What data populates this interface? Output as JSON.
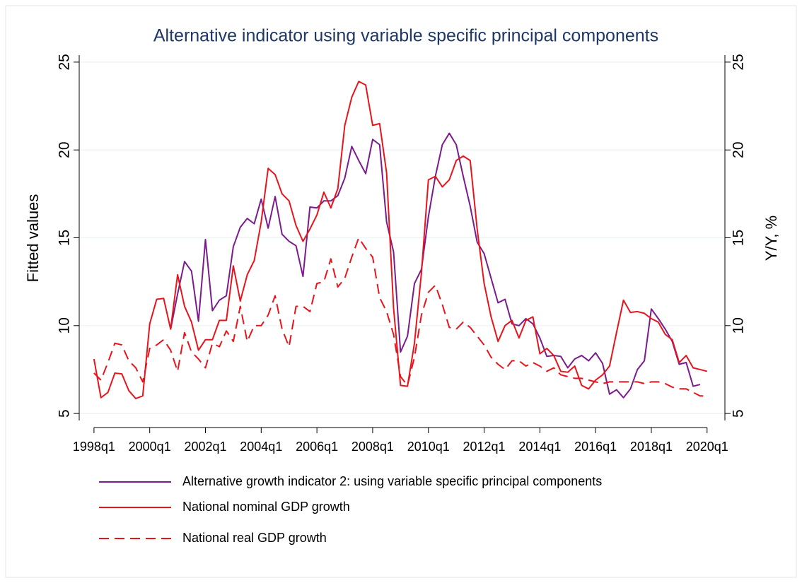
{
  "chart_data": {
    "type": "line",
    "title": "Alternative indicator using variable specific principal components",
    "y_label": "Fitted values",
    "y2_label": "Y/Y, %",
    "x": [
      1998,
      1998.25,
      1998.5,
      1998.75,
      1999,
      1999.25,
      1999.5,
      1999.75,
      2000,
      2000.25,
      2000.5,
      2000.75,
      2001,
      2001.25,
      2001.5,
      2001.75,
      2002,
      2002.25,
      2002.5,
      2002.75,
      2003,
      2003.25,
      2003.5,
      2003.75,
      2004,
      2004.25,
      2004.5,
      2004.75,
      2005,
      2005.25,
      2005.5,
      2005.75,
      2006,
      2006.25,
      2006.5,
      2006.75,
      2007,
      2007.25,
      2007.5,
      2007.75,
      2008,
      2008.25,
      2008.5,
      2008.75,
      2009,
      2009.25,
      2009.5,
      2009.75,
      2010,
      2010.25,
      2010.5,
      2010.75,
      2011,
      2011.25,
      2011.5,
      2011.75,
      2012,
      2012.25,
      2012.5,
      2012.75,
      2013,
      2013.25,
      2013.5,
      2013.75,
      2014,
      2014.25,
      2014.5,
      2014.75,
      2015,
      2015.25,
      2015.5,
      2015.75,
      2016,
      2016.25,
      2016.5,
      2016.75,
      2017,
      2017.25,
      2017.5,
      2017.75,
      2018,
      2018.25,
      2018.5,
      2018.75,
      2019,
      2019.25,
      2019.5,
      2019.75,
      2020
    ],
    "series": [
      {
        "name": "Alternative growth indicator 2: using variable specific principal components",
        "color": "#7a1c8c",
        "dash": false,
        "axis": "y",
        "values": [
          null,
          null,
          null,
          null,
          null,
          null,
          null,
          null,
          null,
          null,
          null,
          9.8,
          11.8,
          13.65,
          13.1,
          10.25,
          14.9,
          10.85,
          11.45,
          11.7,
          14.5,
          15.6,
          16.1,
          15.8,
          17.2,
          15.55,
          17.35,
          15.2,
          14.8,
          14.55,
          12.8,
          16.75,
          16.7,
          17.1,
          17.1,
          17.4,
          18.4,
          20.2,
          19.4,
          18.65,
          20.6,
          20.3,
          15.9,
          14.2,
          8.5,
          9.4,
          12.4,
          13.2,
          16.2,
          18.5,
          20.3,
          20.95,
          20.3,
          18.5,
          16.8,
          14.75,
          14.1,
          12.7,
          11.3,
          11.5,
          10.1,
          10.0,
          10.4,
          10.1,
          9.3,
          8.25,
          8.3,
          8.25,
          7.6,
          8.1,
          8.3,
          8.0,
          8.45,
          7.85,
          6.1,
          6.35,
          5.9,
          6.4,
          7.5,
          8.0,
          10.95,
          10.4,
          9.8,
          9.1,
          7.8,
          7.9,
          6.55,
          6.65,
          null
        ]
      },
      {
        "name": "National nominal GDP growth",
        "color": "#e8141b",
        "dash": false,
        "axis": "y2",
        "values": [
          8.1,
          5.9,
          6.2,
          7.3,
          7.25,
          6.3,
          5.85,
          6.0,
          10.1,
          11.5,
          11.55,
          9.8,
          12.9,
          11.1,
          10.2,
          8.6,
          9.2,
          9.2,
          10.3,
          10.3,
          13.4,
          11.4,
          12.9,
          13.7,
          15.9,
          18.95,
          18.6,
          17.5,
          17.1,
          15.7,
          14.8,
          15.5,
          16.3,
          17.6,
          16.7,
          17.8,
          21.4,
          23.0,
          23.9,
          23.7,
          21.4,
          21.5,
          18.7,
          11.0,
          6.6,
          6.55,
          9.0,
          13.0,
          18.3,
          18.5,
          17.9,
          18.3,
          19.4,
          19.65,
          19.4,
          15.5,
          12.4,
          10.5,
          9.1,
          10.0,
          10.3,
          9.3,
          10.3,
          10.5,
          8.4,
          8.7,
          8.3,
          7.4,
          7.35,
          7.7,
          6.6,
          6.4,
          6.9,
          7.2,
          7.7,
          9.6,
          11.45,
          10.75,
          10.8,
          10.7,
          10.4,
          10.2,
          9.5,
          9.2,
          7.9,
          8.3,
          7.6,
          7.5,
          7.4
        ]
      },
      {
        "name": "National real GDP growth",
        "color": "#e8141b",
        "dash": true,
        "axis": "y2",
        "values": [
          7.3,
          6.9,
          7.9,
          9.0,
          8.9,
          8.0,
          7.6,
          6.8,
          8.7,
          8.9,
          9.2,
          8.6,
          7.4,
          9.6,
          8.5,
          8.1,
          7.6,
          9.0,
          8.8,
          9.7,
          9.1,
          11.1,
          9.1,
          10.0,
          10.0,
          10.6,
          11.7,
          9.8,
          8.8,
          11.1,
          11.1,
          10.8,
          12.4,
          12.5,
          13.8,
          12.2,
          12.7,
          13.9,
          15.0,
          14.4,
          13.9,
          11.6,
          10.8,
          9.5,
          7.1,
          6.6,
          8.2,
          10.6,
          11.9,
          12.3,
          11.2,
          9.9,
          9.8,
          10.2,
          9.9,
          9.4,
          8.9,
          8.2,
          7.8,
          7.5,
          8.0,
          8.0,
          7.7,
          7.9,
          7.7,
          7.4,
          7.6,
          7.2,
          7.1,
          7.0,
          7.0,
          6.9,
          6.8,
          6.7,
          6.8,
          6.8,
          6.8,
          6.8,
          6.8,
          6.7,
          6.8,
          6.8,
          6.7,
          6.5,
          6.4,
          6.4,
          6.2,
          6.0,
          6.0
        ]
      }
    ],
    "xlim": [
      1997.47,
      2020.64
    ],
    "xticks": [
      {
        "value": 1998,
        "label": "1998q1"
      },
      {
        "value": 2000,
        "label": "2000q1"
      },
      {
        "value": 2002,
        "label": "2002q1"
      },
      {
        "value": 2004,
        "label": "2004q1"
      },
      {
        "value": 2006,
        "label": "2006q1"
      },
      {
        "value": 2008,
        "label": "2008q1"
      },
      {
        "value": 2010,
        "label": "2010q1"
      },
      {
        "value": 2012,
        "label": "2012q1"
      },
      {
        "value": 2014,
        "label": "2014q1"
      },
      {
        "value": 2016,
        "label": "2016q1"
      },
      {
        "value": 2018,
        "label": "2018q1"
      },
      {
        "value": 2020,
        "label": "2020q1"
      }
    ],
    "ylim": [
      4.2,
      25.8
    ],
    "yticks": [
      5,
      10,
      15,
      20,
      25
    ],
    "y2lim": [
      4.2,
      25.8
    ],
    "y2ticks": [
      5,
      10,
      15,
      20,
      25
    ],
    "grid": true
  }
}
